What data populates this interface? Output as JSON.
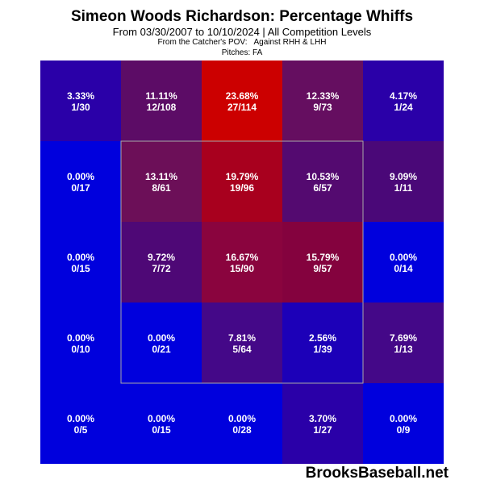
{
  "title": "Simeon Woods Richardson: Percentage Whiffs",
  "subtitle": "From 03/30/2007 to 10/10/2024 | All Competition Levels",
  "pov": "From the Catcher's POV:",
  "against": "Against RHH & LHH",
  "pitches": "Pitches:  FA",
  "watermark": "BrooksBaseball.net",
  "chart_data": {
    "type": "heatmap",
    "rows": 5,
    "cols": 5,
    "strike_zone": {
      "row_start": 1,
      "row_end": 3,
      "col_start": 1,
      "col_end": 3
    },
    "cells": [
      [
        {
          "pct": "3.33%",
          "frac": "1/30",
          "color": "#2a00a8"
        },
        {
          "pct": "11.11%",
          "frac": "12/108",
          "color": "#5c0c66"
        },
        {
          "pct": "23.68%",
          "frac": "27/114",
          "color": "#cc0000"
        },
        {
          "pct": "12.33%",
          "frac": "9/73",
          "color": "#650e60"
        },
        {
          "pct": "4.17%",
          "frac": "1/24",
          "color": "#2a00a8"
        }
      ],
      [
        {
          "pct": "0.00%",
          "frac": "0/17",
          "color": "#0000dd"
        },
        {
          "pct": "13.11%",
          "frac": "8/61",
          "color": "#6c0f58"
        },
        {
          "pct": "19.79%",
          "frac": "19/96",
          "color": "#a8001e"
        },
        {
          "pct": "10.53%",
          "frac": "6/57",
          "color": "#540a70"
        },
        {
          "pct": "9.09%",
          "frac": "1/11",
          "color": "#4a0878"
        }
      ],
      [
        {
          "pct": "0.00%",
          "frac": "0/15",
          "color": "#0000dd"
        },
        {
          "pct": "9.72%",
          "frac": "7/72",
          "color": "#4e0876"
        },
        {
          "pct": "16.67%",
          "frac": "15/90",
          "color": "#8a043e"
        },
        {
          "pct": "15.79%",
          "frac": "9/57",
          "color": "#84023e"
        },
        {
          "pct": "0.00%",
          "frac": "0/14",
          "color": "#0000dd"
        }
      ],
      [
        {
          "pct": "0.00%",
          "frac": "0/10",
          "color": "#0000dd"
        },
        {
          "pct": "0.00%",
          "frac": "0/21",
          "color": "#0000dd"
        },
        {
          "pct": "7.81%",
          "frac": "5/64",
          "color": "#440888"
        },
        {
          "pct": "2.56%",
          "frac": "1/39",
          "color": "#1c00b8"
        },
        {
          "pct": "7.69%",
          "frac": "1/13",
          "color": "#440888"
        }
      ],
      [
        {
          "pct": "0.00%",
          "frac": "0/5",
          "color": "#0000dd"
        },
        {
          "pct": "0.00%",
          "frac": "0/15",
          "color": "#0000dd"
        },
        {
          "pct": "0.00%",
          "frac": "0/28",
          "color": "#0000dd"
        },
        {
          "pct": "3.70%",
          "frac": "1/27",
          "color": "#2a00a8"
        },
        {
          "pct": "0.00%",
          "frac": "0/9",
          "color": "#0000dd"
        }
      ]
    ]
  }
}
